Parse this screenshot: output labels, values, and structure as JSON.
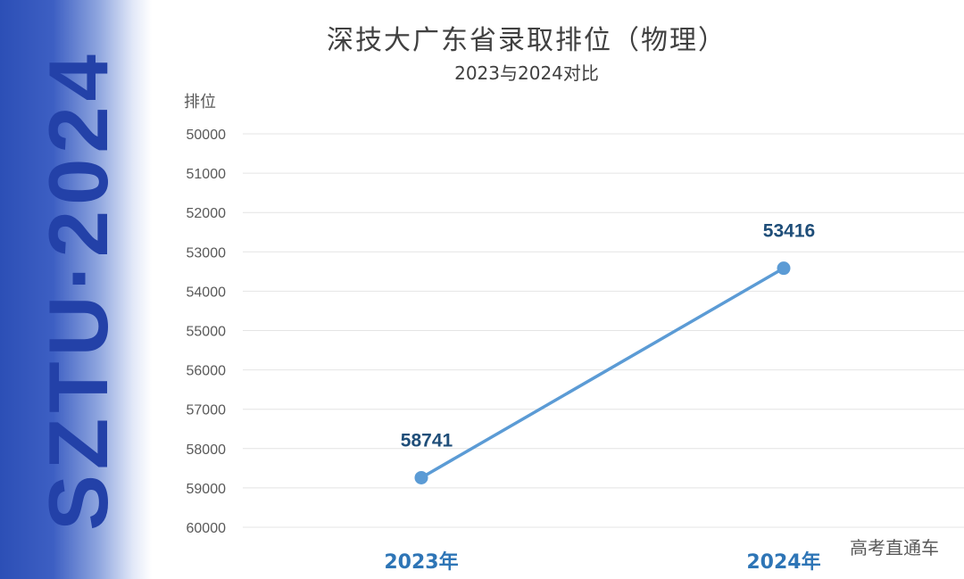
{
  "side_banner": {
    "text": "SZTU·2024",
    "color": "#2341a8"
  },
  "watermark": "高考直通车",
  "chart_data": {
    "type": "line",
    "title": "深技大广东省录取排位（物理）",
    "subtitle": "2023与2024对比",
    "xlabel": "",
    "ylabel": "排位",
    "categories": [
      "2023年",
      "2024年"
    ],
    "series": [
      {
        "name": "排位",
        "values": [
          58741,
          53416
        ],
        "labels": [
          "58741",
          "53416"
        ],
        "color": "#5b9bd5"
      }
    ],
    "ylim": [
      60000,
      50000
    ],
    "y_inverted": true,
    "yticks": [
      50000,
      51000,
      52000,
      53000,
      54000,
      55000,
      56000,
      57000,
      58000,
      59000,
      60000
    ],
    "ytick_labels": [
      "50000",
      "51000",
      "52000",
      "53000",
      "54000",
      "55000",
      "56000",
      "57000",
      "58000",
      "59000",
      "60000"
    ],
    "grid": true,
    "label_color": "#1f4e79",
    "category_color": "#2e75b6"
  }
}
